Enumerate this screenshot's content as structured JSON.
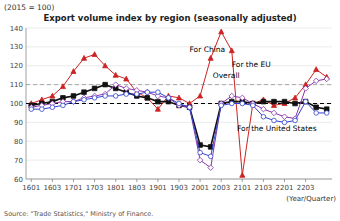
{
  "chart_data": {
    "type": "line",
    "title": "Export volume index by region (seasonally adjusted)",
    "subtitle": "(2015 = 100)",
    "x_label": "(Year/Quarter)",
    "source": "Source: \"Trade Statistics,\" Ministry of Finance.",
    "categories": [
      "1601",
      null,
      "1603",
      null,
      "1701",
      null,
      "1703",
      null,
      "1801",
      null,
      "1803",
      null,
      "1901",
      null,
      "1903",
      null,
      "2001",
      null,
      "2003",
      null,
      "2101",
      null,
      "2103",
      null,
      "2201",
      null,
      "2203",
      null,
      null
    ],
    "series": [
      {
        "name": "For China",
        "color": "#cc2222",
        "marker": "triangle",
        "values": [
          100,
          102,
          104,
          109,
          117,
          124,
          126,
          120,
          115,
          113,
          106,
          103,
          97,
          104,
          103,
          100,
          104,
          124,
          138,
          128,
          62,
          100,
          102,
          99,
          100,
          103,
          110,
          118,
          114
        ]
      },
      {
        "name": "Overall",
        "color": "#111111",
        "marker": "square",
        "values": [
          99,
          100,
          101,
          103,
          104,
          106,
          108,
          110,
          108,
          106,
          104,
          103,
          101,
          101,
          99,
          98,
          78,
          77,
          100,
          101,
          101,
          100,
          101,
          101,
          101,
          100,
          101,
          98,
          97
        ]
      },
      {
        "name": "For the EU",
        "color": "#8833aa",
        "marker": "diamond-open",
        "values": [
          98,
          99,
          100,
          101,
          101,
          103,
          104,
          105,
          110,
          108,
          107,
          106,
          104,
          103,
          99,
          98,
          70,
          66,
          100,
          104,
          103,
          100,
          97,
          95,
          93,
          92,
          108,
          112,
          113
        ]
      },
      {
        "name": "For the United States",
        "color": "#3344cc",
        "marker": "circle-open",
        "values": [
          97,
          97,
          98,
          99,
          101,
          102,
          103,
          104,
          104,
          105,
          105,
          106,
          106,
          103,
          100,
          98,
          74,
          72,
          99,
          100,
          100,
          99,
          93,
          91,
          90,
          91,
          101,
          95,
          95
        ]
      }
    ],
    "hlines": [
      100,
      110
    ],
    "ylim": [
      60,
      140
    ],
    "yticks": [
      60,
      70,
      80,
      90,
      100,
      110,
      120,
      130,
      140
    ],
    "grid": true,
    "annotations": [
      {
        "text": "For China",
        "x": 15,
        "y": 127
      },
      {
        "text": "Overall",
        "x": 17.2,
        "y": 113
      },
      {
        "text": "For the EU",
        "x": 19,
        "y": 119
      },
      {
        "text": "For the United States",
        "x": 19.5,
        "y": 85
      }
    ]
  }
}
